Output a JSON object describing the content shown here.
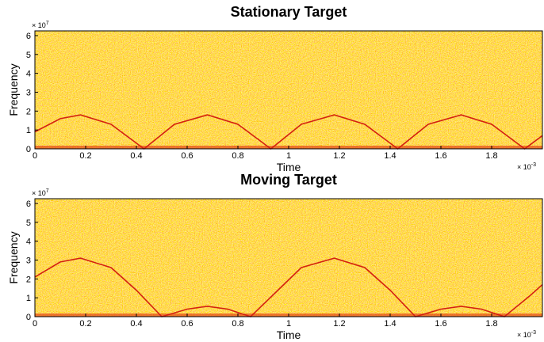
{
  "chart_data": [
    {
      "type": "spectrogram",
      "title": "Stationary Target",
      "xlabel": "Time",
      "ylabel": "Frequency",
      "x_multiplier": "× 10",
      "x_exponent": "-3",
      "y_multiplier": "× 10",
      "y_exponent": "7",
      "xlim": [
        0,
        2.0
      ],
      "ylim": [
        0,
        6.25
      ],
      "xticks": [
        0,
        0.2,
        0.4,
        0.6,
        0.8,
        1,
        1.2,
        1.4,
        1.6,
        1.8
      ],
      "yticks": [
        0,
        1,
        2,
        3,
        4,
        5,
        6
      ],
      "series": [
        {
          "color": "#d42010",
          "x": [
            0,
            0.1,
            0.18,
            0.3,
            0.43,
            0.55,
            0.68,
            0.8,
            0.93,
            1.05,
            1.18,
            1.3,
            1.43,
            1.55,
            1.68,
            1.8,
            1.93,
            2.0
          ],
          "values": [
            0.9,
            1.6,
            1.8,
            1.3,
            0,
            1.3,
            1.8,
            1.3,
            0,
            1.3,
            1.8,
            1.3,
            0,
            1.3,
            1.8,
            1.3,
            0,
            0.7
          ]
        }
      ]
    },
    {
      "type": "spectrogram",
      "title": "Moving Target",
      "xlabel": "Time",
      "ylabel": "Frequency",
      "x_multiplier": "× 10",
      "x_exponent": "-3",
      "y_multiplier": "× 10",
      "y_exponent": "7",
      "xlim": [
        0,
        2.0
      ],
      "ylim": [
        0,
        6.25
      ],
      "xticks": [
        0,
        0.2,
        0.4,
        0.6,
        0.8,
        1,
        1.2,
        1.4,
        1.6,
        1.8
      ],
      "yticks": [
        0,
        1,
        2,
        3,
        4,
        5,
        6
      ],
      "series": [
        {
          "color": "#d42010",
          "x": [
            0,
            0.1,
            0.18,
            0.3,
            0.4,
            0.5,
            0.6,
            0.68,
            0.76,
            0.85,
            0.95,
            1.05,
            1.18,
            1.3,
            1.4,
            1.5,
            1.6,
            1.68,
            1.76,
            1.85,
            1.95,
            2.0
          ],
          "values": [
            2.1,
            2.9,
            3.1,
            2.6,
            1.4,
            0,
            0.4,
            0.55,
            0.4,
            0,
            1.3,
            2.6,
            3.1,
            2.6,
            1.4,
            0,
            0.4,
            0.55,
            0.4,
            0,
            1.1,
            1.7
          ]
        }
      ]
    }
  ]
}
